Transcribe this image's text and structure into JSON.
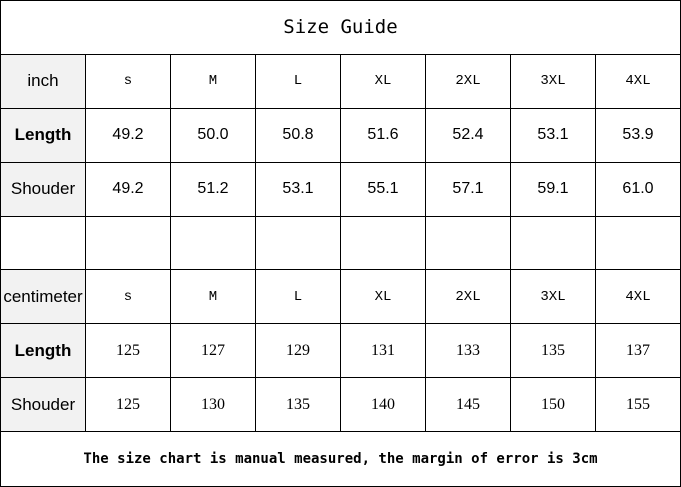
{
  "title": "Size Guide",
  "inch": {
    "unit": "inch",
    "sizes": [
      "s",
      "M",
      "L",
      "XL",
      "2XL",
      "3XL",
      "4XL"
    ],
    "rows": [
      {
        "label": "Length",
        "values": [
          "49.2",
          "50.0",
          "50.8",
          "51.6",
          "52.4",
          "53.1",
          "53.9"
        ]
      },
      {
        "label": "Shouder",
        "values": [
          "49.2",
          "51.2",
          "53.1",
          "55.1",
          "57.1",
          "59.1",
          "61.0"
        ]
      }
    ]
  },
  "cm": {
    "unit": "centimeter",
    "sizes": [
      "s",
      "M",
      "L",
      "XL",
      "2XL",
      "3XL",
      "4XL"
    ],
    "rows": [
      {
        "label": "Length",
        "values": [
          "125",
          "127",
          "129",
          "131",
          "133",
          "135",
          "137"
        ]
      },
      {
        "label": "Shouder",
        "values": [
          "125",
          "130",
          "135",
          "140",
          "145",
          "150",
          "155"
        ]
      }
    ]
  },
  "footer": "The size chart is manual measured, the margin of error is 3cm"
}
